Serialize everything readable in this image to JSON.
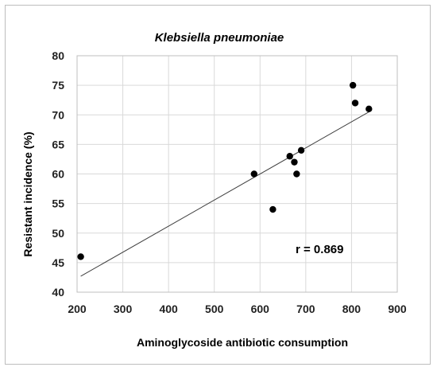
{
  "chart_data": {
    "type": "scatter",
    "title": "Klebsiella pneumoniae",
    "xlabel": "Aminoglycoside antibiotic consumption",
    "ylabel": "Resistant incidence (%)",
    "xlim": [
      200,
      900
    ],
    "ylim": [
      40,
      80
    ],
    "xticks": [
      200,
      300,
      400,
      500,
      600,
      700,
      800,
      900
    ],
    "yticks": [
      40,
      45,
      50,
      55,
      60,
      65,
      70,
      75,
      80
    ],
    "grid": true,
    "points": [
      {
        "x": 208,
        "y": 46
      },
      {
        "x": 587,
        "y": 60
      },
      {
        "x": 628,
        "y": 54
      },
      {
        "x": 665,
        "y": 63
      },
      {
        "x": 675,
        "y": 62
      },
      {
        "x": 680,
        "y": 60
      },
      {
        "x": 690,
        "y": 64
      },
      {
        "x": 803,
        "y": 75
      },
      {
        "x": 808,
        "y": 72
      },
      {
        "x": 838,
        "y": 71
      }
    ],
    "trendline": {
      "x": [
        208,
        838
      ],
      "y": [
        42.7,
        70.5
      ]
    },
    "annotation": "r = 0.869",
    "colors": {
      "points": "#000000",
      "grid": "#d9d9d9",
      "trendline": "#404040"
    }
  }
}
